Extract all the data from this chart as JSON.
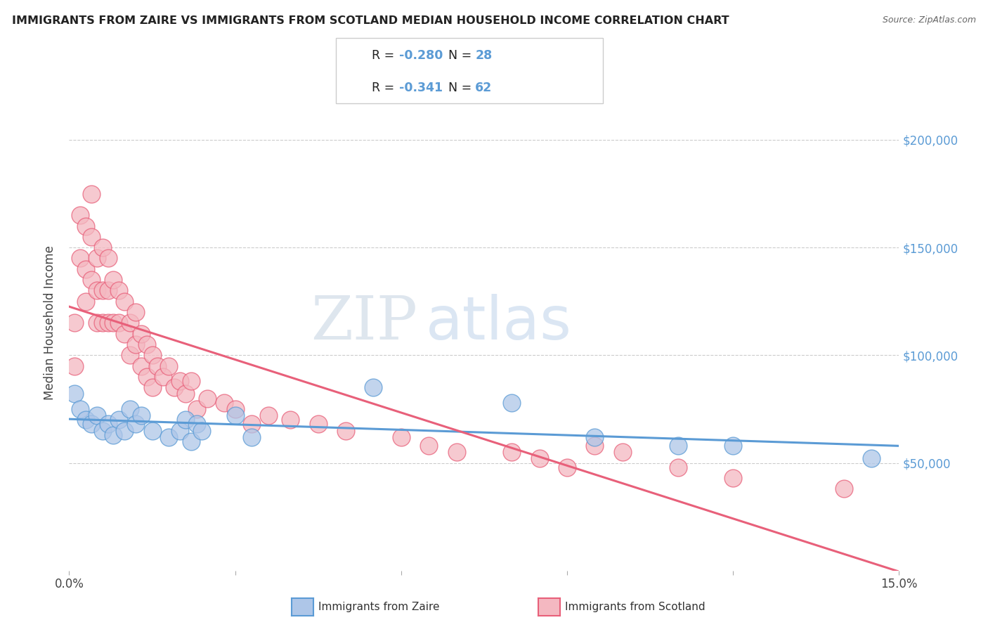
{
  "title": "IMMIGRANTS FROM ZAIRE VS IMMIGRANTS FROM SCOTLAND MEDIAN HOUSEHOLD INCOME CORRELATION CHART",
  "source": "Source: ZipAtlas.com",
  "ylabel": "Median Household Income",
  "xlim": [
    0.0,
    0.15
  ],
  "ylim": [
    0,
    230000
  ],
  "xticks": [
    0.0,
    0.03,
    0.06,
    0.09,
    0.12,
    0.15
  ],
  "xticklabels": [
    "0.0%",
    "",
    "",
    "",
    "",
    "15.0%"
  ],
  "ytick_vals": [
    0,
    50000,
    100000,
    150000,
    200000
  ],
  "ytick_labels": [
    "",
    "$50,000",
    "$100,000",
    "$150,000",
    "$200,000"
  ],
  "background_color": "#ffffff",
  "watermark_zip": "ZIP",
  "watermark_atlas": "atlas",
  "zaire_color": "#aec6e8",
  "scotland_color": "#f4b8c1",
  "zaire_edge_color": "#5b9bd5",
  "scotland_edge_color": "#e8607a",
  "zaire_line_color": "#5b9bd5",
  "scotland_line_color": "#e8607a",
  "zaire_R": "-0.280",
  "zaire_N": "28",
  "scotland_R": "-0.341",
  "scotland_N": "62",
  "legend_label_zaire": "Immigrants from Zaire",
  "legend_label_scotland": "Immigrants from Scotland",
  "zaire_x": [
    0.001,
    0.002,
    0.003,
    0.004,
    0.005,
    0.006,
    0.007,
    0.008,
    0.009,
    0.01,
    0.011,
    0.012,
    0.013,
    0.015,
    0.018,
    0.02,
    0.021,
    0.022,
    0.023,
    0.024,
    0.03,
    0.033,
    0.055,
    0.08,
    0.095,
    0.11,
    0.12,
    0.145
  ],
  "zaire_y": [
    82000,
    75000,
    70000,
    68000,
    72000,
    65000,
    68000,
    63000,
    70000,
    65000,
    75000,
    68000,
    72000,
    65000,
    62000,
    65000,
    70000,
    60000,
    68000,
    65000,
    72000,
    62000,
    85000,
    78000,
    62000,
    58000,
    58000,
    52000
  ],
  "scotland_x": [
    0.001,
    0.001,
    0.002,
    0.002,
    0.003,
    0.003,
    0.003,
    0.004,
    0.004,
    0.004,
    0.005,
    0.005,
    0.005,
    0.006,
    0.006,
    0.006,
    0.007,
    0.007,
    0.007,
    0.008,
    0.008,
    0.009,
    0.009,
    0.01,
    0.01,
    0.011,
    0.011,
    0.012,
    0.012,
    0.013,
    0.013,
    0.014,
    0.014,
    0.015,
    0.015,
    0.016,
    0.017,
    0.018,
    0.019,
    0.02,
    0.021,
    0.022,
    0.023,
    0.025,
    0.028,
    0.03,
    0.033,
    0.036,
    0.04,
    0.045,
    0.05,
    0.06,
    0.065,
    0.07,
    0.08,
    0.085,
    0.09,
    0.095,
    0.1,
    0.11,
    0.12,
    0.14
  ],
  "scotland_y": [
    115000,
    95000,
    165000,
    145000,
    160000,
    140000,
    125000,
    175000,
    155000,
    135000,
    145000,
    130000,
    115000,
    150000,
    130000,
    115000,
    145000,
    130000,
    115000,
    135000,
    115000,
    130000,
    115000,
    125000,
    110000,
    115000,
    100000,
    120000,
    105000,
    110000,
    95000,
    105000,
    90000,
    100000,
    85000,
    95000,
    90000,
    95000,
    85000,
    88000,
    82000,
    88000,
    75000,
    80000,
    78000,
    75000,
    68000,
    72000,
    70000,
    68000,
    65000,
    62000,
    58000,
    55000,
    55000,
    52000,
    48000,
    58000,
    55000,
    48000,
    43000,
    38000
  ]
}
